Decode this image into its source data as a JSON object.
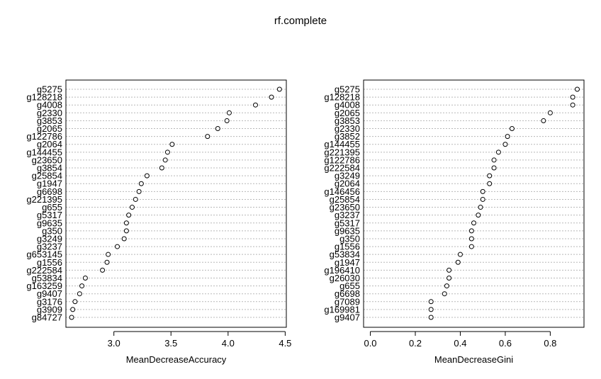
{
  "chart_data": [
    {
      "type": "scatter",
      "title": "rf.complete",
      "xlabel": "MeanDecreaseAccuracy",
      "ylabel": "",
      "xlim": [
        2.58,
        4.51
      ],
      "xticks": [
        "3.0",
        "3.5",
        "4.0",
        "4.5"
      ],
      "xtick_values": [
        3.0,
        3.5,
        4.0,
        4.5
      ],
      "grid": "dotted horizontal",
      "categories": [
        "g5275",
        "g128218",
        "g4008",
        "g2330",
        "g3853",
        "g2065",
        "g122786",
        "g2064",
        "g144455",
        "g23650",
        "g3854",
        "g25854",
        "g1947",
        "g6698",
        "g221395",
        "g655",
        "g5317",
        "g9635",
        "g350",
        "g3249",
        "g3237",
        "g653145",
        "g1556",
        "g222584",
        "g53834",
        "g163259",
        "g9407",
        "g3176",
        "g3909",
        "g84727"
      ],
      "values": [
        4.45,
        4.38,
        4.24,
        4.01,
        3.99,
        3.91,
        3.82,
        3.51,
        3.47,
        3.45,
        3.42,
        3.29,
        3.24,
        3.22,
        3.19,
        3.16,
        3.13,
        3.11,
        3.11,
        3.09,
        3.03,
        2.95,
        2.94,
        2.9,
        2.75,
        2.72,
        2.7,
        2.66,
        2.64,
        2.63
      ]
    },
    {
      "type": "scatter",
      "xlabel": "MeanDecreaseGini",
      "ylabel": "",
      "xlim": [
        -0.03,
        0.95
      ],
      "xticks": [
        "0.0",
        "0.2",
        "0.4",
        "0.6",
        "0.8"
      ],
      "xtick_values": [
        0.0,
        0.2,
        0.4,
        0.6,
        0.8
      ],
      "grid": "dotted horizontal",
      "categories": [
        "g5275",
        "g128218",
        "g4008",
        "g2065",
        "g3853",
        "g2330",
        "g3852",
        "g144455",
        "g221395",
        "g122786",
        "g222584",
        "g3249",
        "g2064",
        "g146456",
        "g25854",
        "g23650",
        "g3237",
        "g5317",
        "g9635",
        "g350",
        "g1556",
        "g53834",
        "g1947",
        "g196410",
        "g26030",
        "g655",
        "g6698",
        "g7089",
        "g169981",
        "g9407"
      ],
      "values": [
        0.92,
        0.9,
        0.9,
        0.8,
        0.77,
        0.63,
        0.61,
        0.6,
        0.57,
        0.55,
        0.55,
        0.53,
        0.53,
        0.5,
        0.5,
        0.49,
        0.48,
        0.46,
        0.45,
        0.45,
        0.45,
        0.4,
        0.39,
        0.35,
        0.35,
        0.34,
        0.33,
        0.27,
        0.27,
        0.27
      ]
    }
  ]
}
